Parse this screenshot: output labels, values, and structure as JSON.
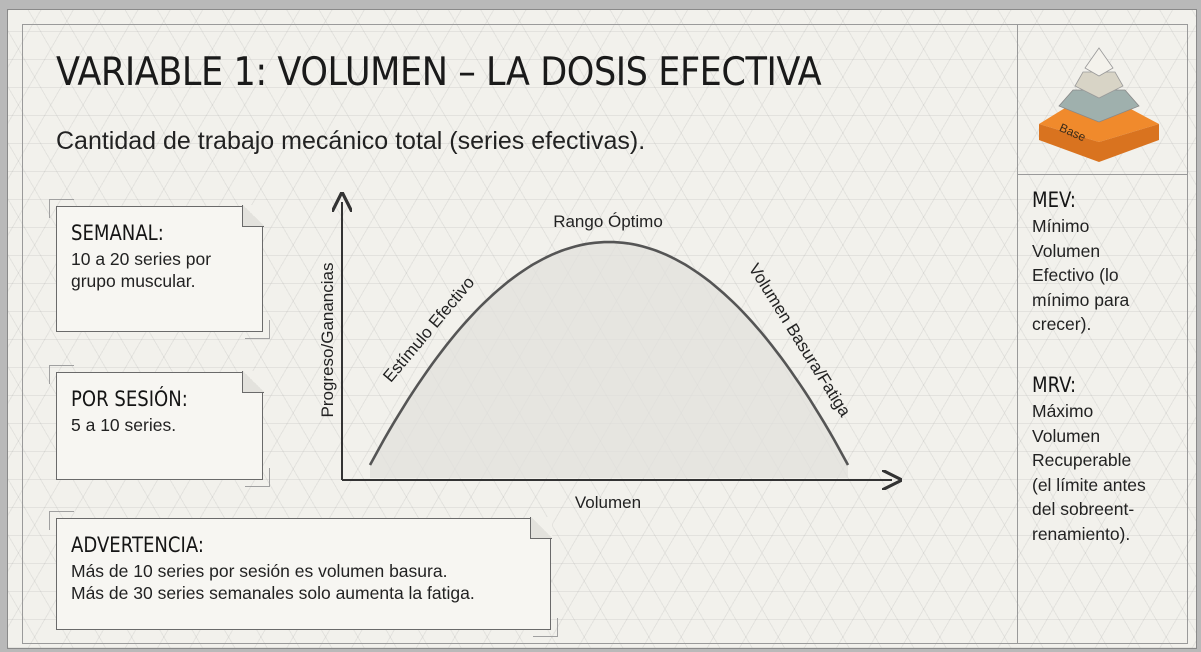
{
  "title": "VARIABLE 1: VOLUMEN – LA DOSIS EFECTIVA",
  "subtitle": "Cantidad de trabajo mecánico total (series efectivas).",
  "notes": {
    "semanal": {
      "heading": "SEMANAL:",
      "lines": [
        "10 a 20 series por",
        "grupo muscular."
      ]
    },
    "sesion": {
      "heading": "POR SESIÓN:",
      "lines": [
        "5 a 10 series."
      ]
    },
    "advertencia": {
      "heading": "ADVERTENCIA:",
      "lines": [
        "Más de 10 series por sesión es volumen basura.",
        "Más de 30 series semanales solo aumenta la fatiga."
      ]
    }
  },
  "chart_data": {
    "type": "line",
    "title": "",
    "xlabel": "Volumen",
    "ylabel": "Progreso/Ganancias",
    "series": [
      {
        "x": [
          0,
          0.1,
          0.2,
          0.3,
          0.4,
          0.5,
          0.6,
          0.7,
          0.8,
          0.9,
          1.0
        ],
        "y": [
          0,
          0.36,
          0.64,
          0.84,
          0.96,
          1.0,
          0.96,
          0.84,
          0.64,
          0.36,
          0
        ]
      }
    ],
    "annotations": {
      "peak": "Rango Óptimo",
      "rising": "Estímulo Efectivo",
      "falling": "Volumen Basura/Fatiga"
    },
    "line_color": "#555555",
    "fill_color": "#e2e0dc"
  },
  "pyramid": {
    "base_label": "Base",
    "colors": {
      "base": "#f08a2c",
      "second": "#9fb0ad",
      "third": "#d8d4c6",
      "top": "#f4f2ec"
    }
  },
  "sidebar": {
    "mev": {
      "heading": "MEV:",
      "lines": [
        "Mínimo",
        "Volumen",
        "Efectivo (lo",
        "mínimo para",
        "crecer)."
      ]
    },
    "mrv": {
      "heading": "MRV:",
      "lines": [
        "Máximo",
        "Volumen",
        "Recuperable",
        "(el límite antes",
        "del sobreent-",
        "renamiento)."
      ]
    }
  }
}
